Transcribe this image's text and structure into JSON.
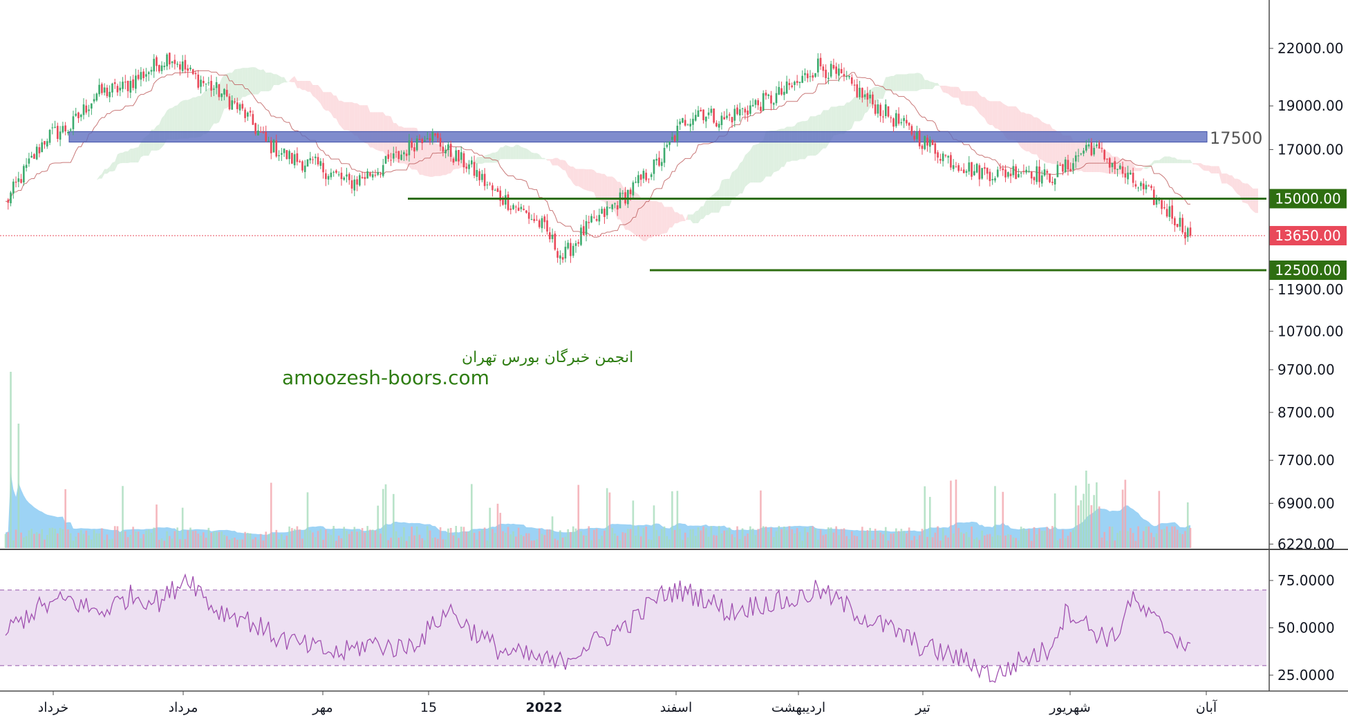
{
  "chart_data": {
    "type": "candlestick",
    "price_axis": {
      "ticks": [
        "22000.00",
        "19000.00",
        "17000.00",
        "15000.00",
        "13650.00",
        "12500.00",
        "11900.00",
        "10700.00",
        "9700.00",
        "8700.00",
        "7700.00",
        "6900.00",
        "6220.00"
      ],
      "tick_values": [
        22000,
        19000,
        17000,
        15000,
        13650,
        12500,
        11900,
        10700,
        9700,
        8700,
        7700,
        6900,
        6220
      ],
      "scale": "log"
    },
    "rsi_axis": {
      "ticks": [
        "75.0000",
        "50.0000",
        "25.0000"
      ],
      "tick_values": [
        75,
        50,
        25
      ],
      "band": [
        70,
        30
      ]
    },
    "x_labels": [
      {
        "text": "خرداد",
        "bold": false
      },
      {
        "text": "مرداد",
        "bold": false
      },
      {
        "text": "مهر",
        "bold": false
      },
      {
        "text": "15",
        "bold": false
      },
      {
        "text": "2022",
        "bold": true
      },
      {
        "text": "اسفند",
        "bold": false
      },
      {
        "text": "اردیبهشت",
        "bold": false
      },
      {
        "text": "تیر",
        "bold": false
      },
      {
        "text": "شهریور",
        "bold": false
      },
      {
        "text": "آبان",
        "bold": false
      }
    ],
    "levels": [
      {
        "label": "17500",
        "value": 17500,
        "kind": "resistance-band"
      },
      {
        "label": "15000.00",
        "value": 15000,
        "kind": "support",
        "color": "#2e6e11"
      },
      {
        "label": "12500.00",
        "value": 12500,
        "kind": "support",
        "color": "#2e6e11"
      }
    ],
    "last_price": {
      "label": "13650.00",
      "value": 13650,
      "color": "#e9495a"
    },
    "close_anchors": [
      [
        0,
        14800
      ],
      [
        8,
        16200
      ],
      [
        16,
        17600
      ],
      [
        25,
        18000
      ],
      [
        35,
        19600
      ],
      [
        45,
        19900
      ],
      [
        55,
        20800
      ],
      [
        63,
        21600
      ],
      [
        72,
        20500
      ],
      [
        82,
        19700
      ],
      [
        92,
        18600
      ],
      [
        100,
        17300
      ],
      [
        110,
        16600
      ],
      [
        120,
        16300
      ],
      [
        132,
        15600
      ],
      [
        142,
        16100
      ],
      [
        152,
        16800
      ],
      [
        162,
        17800
      ],
      [
        170,
        16900
      ],
      [
        178,
        16300
      ],
      [
        188,
        15200
      ],
      [
        196,
        14700
      ],
      [
        206,
        14000
      ],
      [
        214,
        12900
      ],
      [
        222,
        13800
      ],
      [
        232,
        14600
      ],
      [
        242,
        15500
      ],
      [
        252,
        16600
      ],
      [
        260,
        18200
      ],
      [
        266,
        18800
      ],
      [
        275,
        18300
      ],
      [
        285,
        18900
      ],
      [
        295,
        19400
      ],
      [
        305,
        20200
      ],
      [
        312,
        21100
      ],
      [
        322,
        20300
      ],
      [
        332,
        19200
      ],
      [
        342,
        18300
      ],
      [
        352,
        17400
      ],
      [
        362,
        16600
      ],
      [
        372,
        16100
      ],
      [
        382,
        16000
      ],
      [
        392,
        16200
      ],
      [
        400,
        15800
      ],
      [
        408,
        16300
      ],
      [
        416,
        17200
      ],
      [
        424,
        16500
      ],
      [
        432,
        15700
      ],
      [
        440,
        15100
      ],
      [
        448,
        14400
      ],
      [
        455,
        13650
      ]
    ],
    "rsi_anchors": [
      [
        0,
        48
      ],
      [
        12,
        60
      ],
      [
        24,
        65
      ],
      [
        36,
        58
      ],
      [
        48,
        67
      ],
      [
        60,
        64
      ],
      [
        70,
        78
      ],
      [
        80,
        60
      ],
      [
        92,
        55
      ],
      [
        104,
        45
      ],
      [
        116,
        40
      ],
      [
        128,
        36
      ],
      [
        140,
        42
      ],
      [
        152,
        39
      ],
      [
        160,
        45
      ],
      [
        170,
        60
      ],
      [
        178,
        50
      ],
      [
        190,
        38
      ],
      [
        200,
        35
      ],
      [
        212,
        31
      ],
      [
        222,
        40
      ],
      [
        232,
        46
      ],
      [
        242,
        55
      ],
      [
        250,
        66
      ],
      [
        258,
        70
      ],
      [
        268,
        66
      ],
      [
        278,
        58
      ],
      [
        290,
        63
      ],
      [
        302,
        64
      ],
      [
        312,
        70
      ],
      [
        322,
        62
      ],
      [
        332,
        54
      ],
      [
        342,
        48
      ],
      [
        352,
        40
      ],
      [
        362,
        36
      ],
      [
        372,
        31
      ],
      [
        380,
        24
      ],
      [
        390,
        33
      ],
      [
        400,
        38
      ],
      [
        408,
        60
      ],
      [
        418,
        48
      ],
      [
        426,
        44
      ],
      [
        432,
        65
      ],
      [
        440,
        55
      ],
      [
        450,
        45
      ],
      [
        455,
        38
      ]
    ],
    "candle_count": 456,
    "colors": {
      "up": "#3dab6e",
      "down": "#e9495a",
      "cloud_up": "#d7ecd9",
      "cloud_down": "#fbd6d9",
      "kijun": "#c06060",
      "volume_area": "#7cc4f2",
      "rsi": "#a050b0",
      "rsi_band": "#ede0f2",
      "band_17500": "#5f6fc0"
    }
  },
  "watermark": {
    "line1": "انجمن خبرگان بورس تهران",
    "line2": "amoozesh-boors.com"
  }
}
